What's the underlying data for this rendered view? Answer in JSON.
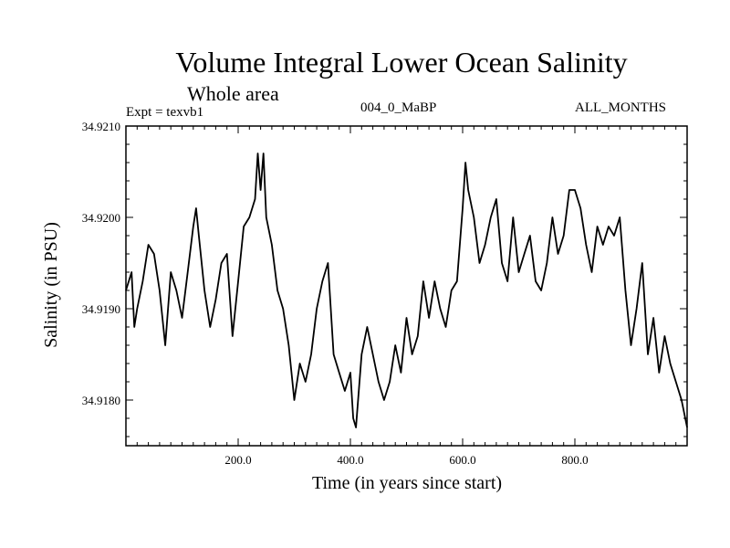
{
  "header": {
    "title": "Volume Integral Lower Ocean Salinity",
    "subtitle": "Whole area",
    "expt": "Expt = texvb1",
    "center": "004_0_MaBP",
    "months": "ALL_MONTHS"
  },
  "chart_data": {
    "type": "line",
    "title": "Volume Integral Lower Ocean Salinity",
    "subtitle": "Whole area",
    "xlabel": "Time (in years since start)",
    "ylabel": "Salinity (in PSU)",
    "xlim": [
      0,
      1000
    ],
    "ylim": [
      34.9175,
      34.921
    ],
    "x_ticks": [
      200,
      400,
      600,
      800
    ],
    "x_tick_labels": [
      "200.0",
      "400.0",
      "600.0",
      "800.0"
    ],
    "y_ticks": [
      34.918,
      34.919,
      34.92,
      34.921
    ],
    "y_tick_labels": [
      "34.9180",
      "34.9190",
      "34.9200",
      "34.9210"
    ],
    "grid": false,
    "series": [
      {
        "name": "Salinity",
        "x": [
          0,
          10,
          15,
          20,
          30,
          40,
          50,
          60,
          70,
          80,
          90,
          100,
          110,
          120,
          125,
          130,
          140,
          150,
          160,
          170,
          180,
          190,
          200,
          210,
          220,
          230,
          235,
          240,
          245,
          250,
          260,
          270,
          280,
          290,
          300,
          310,
          320,
          330,
          340,
          350,
          360,
          370,
          380,
          390,
          400,
          405,
          410,
          420,
          430,
          440,
          450,
          460,
          470,
          480,
          490,
          500,
          510,
          520,
          530,
          540,
          550,
          560,
          570,
          580,
          590,
          600,
          605,
          610,
          620,
          630,
          640,
          650,
          660,
          670,
          680,
          690,
          700,
          710,
          720,
          730,
          740,
          750,
          760,
          770,
          780,
          790,
          800,
          810,
          820,
          830,
          840,
          850,
          860,
          870,
          880,
          890,
          900,
          910,
          920,
          930,
          940,
          950,
          960,
          970,
          980,
          990,
          1000
        ],
        "y": [
          34.9192,
          34.9194,
          34.9188,
          34.919,
          34.9193,
          34.9197,
          34.9196,
          34.9192,
          34.9186,
          34.9194,
          34.9192,
          34.9189,
          34.9194,
          34.9199,
          34.9201,
          34.9198,
          34.9192,
          34.9188,
          34.9191,
          34.9195,
          34.9196,
          34.9187,
          34.9193,
          34.9199,
          34.92,
          34.9202,
          34.9207,
          34.9203,
          34.9207,
          34.92,
          34.9197,
          34.9192,
          34.919,
          34.9186,
          34.918,
          34.9184,
          34.9182,
          34.9185,
          34.919,
          34.9193,
          34.9195,
          34.9185,
          34.9183,
          34.9181,
          34.9183,
          34.9178,
          34.9177,
          34.9185,
          34.9188,
          34.9185,
          34.9182,
          34.918,
          34.9182,
          34.9186,
          34.9183,
          34.9189,
          34.9185,
          34.9187,
          34.9193,
          34.9189,
          34.9193,
          34.919,
          34.9188,
          34.9192,
          34.9193,
          34.9201,
          34.9206,
          34.9203,
          34.92,
          34.9195,
          34.9197,
          34.92,
          34.9202,
          34.9195,
          34.9193,
          34.92,
          34.9194,
          34.9196,
          34.9198,
          34.9193,
          34.9192,
          34.9195,
          34.92,
          34.9196,
          34.9198,
          34.9203,
          34.9203,
          34.9201,
          34.9197,
          34.9194,
          34.9199,
          34.9197,
          34.9199,
          34.9198,
          34.92,
          34.9192,
          34.9186,
          34.919,
          34.9195,
          34.9185,
          34.9189,
          34.9183,
          34.9187,
          34.9184,
          34.9182,
          34.918,
          34.9177
        ]
      }
    ]
  }
}
